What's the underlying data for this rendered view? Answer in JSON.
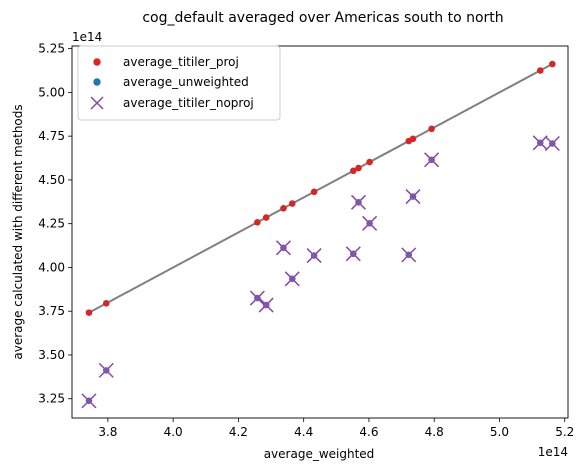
{
  "chart_data": {
    "type": "scatter",
    "title": "cog_default averaged over Americas south to north",
    "xlabel": "average_weighted",
    "ylabel": "average calculated with different methods",
    "x_offset_text": "1e14",
    "y_offset_text": "1e14",
    "xlim": [
      3.69,
      5.21
    ],
    "ylim": [
      3.14,
      5.265
    ],
    "xticks": [
      3.8,
      4.0,
      4.2,
      4.4,
      4.6,
      4.8,
      5.0,
      5.2
    ],
    "xtick_labels": [
      "3.8",
      "4.0",
      "4.2",
      "4.4",
      "4.6",
      "4.8",
      "5.0",
      "5.2"
    ],
    "yticks": [
      3.25,
      3.5,
      3.75,
      4.0,
      4.25,
      4.5,
      4.75,
      5.0,
      5.25
    ],
    "ytick_labels": [
      "3.25",
      "3.50",
      "3.75",
      "4.00",
      "4.25",
      "4.50",
      "4.75",
      "5.00",
      "5.25"
    ],
    "grid": false,
    "legend_position": "top-left",
    "x": [
      3.742,
      3.795,
      4.258,
      4.285,
      4.338,
      4.365,
      4.432,
      4.552,
      4.568,
      4.602,
      4.722,
      4.735,
      4.792,
      5.125,
      5.162
    ],
    "series": [
      {
        "name": "average_titiler_proj",
        "marker": "circle",
        "color": "#d62728",
        "values": [
          3.742,
          3.795,
          4.258,
          4.285,
          4.338,
          4.365,
          4.432,
          4.552,
          4.568,
          4.602,
          4.722,
          4.735,
          4.792,
          5.125,
          5.162
        ]
      },
      {
        "name": "average_unweighted",
        "marker": "circle",
        "color": "#1f77b4",
        "values": [
          3.238,
          3.412,
          3.825,
          3.785,
          4.112,
          3.935,
          4.068,
          4.078,
          4.372,
          4.252,
          4.072,
          4.405,
          4.615,
          4.712,
          4.708
        ]
      },
      {
        "name": "average_titiler_noproj",
        "marker": "x",
        "color": "#8e44ad",
        "values": [
          3.238,
          3.412,
          3.825,
          3.785,
          4.112,
          3.935,
          4.068,
          4.078,
          4.372,
          4.252,
          4.072,
          4.405,
          4.615,
          4.712,
          4.708
        ]
      }
    ],
    "line_color": "#808080",
    "inner_marker_color": "#7b59a6"
  }
}
